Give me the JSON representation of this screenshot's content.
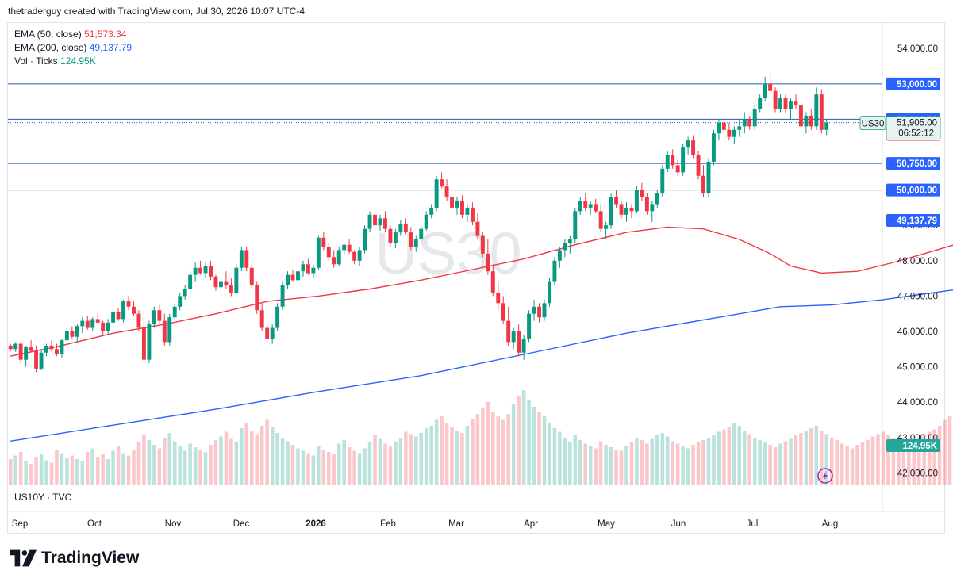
{
  "header": {
    "credit": "thetraderguy created with TradingView.com, Jul 30, 2026 10:07 UTC-4"
  },
  "legend": [
    {
      "label": "EMA (50, close)",
      "value": "51,573.34",
      "color": "#f23645"
    },
    {
      "label": "EMA (200, close)",
      "value": "49,137.79",
      "color": "#2962ff"
    },
    {
      "label": "Vol · Ticks",
      "value": "124.95K",
      "color": "#089981"
    }
  ],
  "sub_legend": "US10Y · TVC",
  "watermark": "US30",
  "footer": {
    "brand": "TradingView"
  },
  "colors": {
    "up": "#089981",
    "down": "#f23645",
    "ema50": "#f23645",
    "ema200": "#2962ff",
    "hline": "#2a5caa"
  },
  "chart_data": {
    "type": "candlestick",
    "symbol": "US30",
    "y_axis_ticks": [
      {
        "value": 54000,
        "label": "54,000.00"
      },
      {
        "value": 49000,
        "label": "49,000.00"
      },
      {
        "value": 48000,
        "label": "48,000.00"
      },
      {
        "value": 47000,
        "label": "47,000.00"
      },
      {
        "value": 46000,
        "label": "46,000.00"
      },
      {
        "value": 45000,
        "label": "45,000.00"
      },
      {
        "value": 44000,
        "label": "44,000.00"
      },
      {
        "value": 43000,
        "label": "43,000.00"
      },
      {
        "value": 42000,
        "label": "42,000.00"
      }
    ],
    "ylim": [
      41650,
      54700
    ],
    "x_axis_labels": [
      "Sep",
      "Oct",
      "Nov",
      "Dec",
      "2026",
      "Feb",
      "Mar",
      "Apr",
      "May",
      "Jun",
      "Jul",
      "Aug"
    ],
    "horizontal_levels": [
      {
        "value": 53000,
        "label": "53,000.00"
      },
      {
        "value": 52000,
        "label": "52,000.00"
      },
      {
        "value": 50750,
        "label": "50,750.00"
      },
      {
        "value": 50000,
        "label": "50,000.00"
      }
    ],
    "last_price": {
      "value": 51905,
      "label": "51,905.00",
      "countdown": "06:52:12",
      "symbol_tag": "US30"
    },
    "ema50": {
      "last": 51573.34,
      "label": "51,573.34",
      "points": [
        [
          0,
          45300
        ],
        [
          10,
          45600
        ],
        [
          20,
          45950
        ],
        [
          30,
          46200
        ],
        [
          40,
          46500
        ],
        [
          50,
          46850
        ],
        [
          60,
          47000
        ],
        [
          70,
          47200
        ],
        [
          80,
          47450
        ],
        [
          90,
          47750
        ],
        [
          100,
          48050
        ],
        [
          110,
          48450
        ],
        [
          120,
          48800
        ],
        [
          128,
          48950
        ],
        [
          135,
          48900
        ],
        [
          142,
          48600
        ],
        [
          148,
          48200
        ],
        [
          152,
          47850
        ],
        [
          158,
          47650
        ],
        [
          165,
          47700
        ],
        [
          172,
          47950
        ],
        [
          178,
          48200
        ],
        [
          185,
          48500
        ],
        [
          192,
          48900
        ],
        [
          200,
          49300
        ],
        [
          207,
          49600
        ],
        [
          212,
          49850
        ],
        [
          218,
          50200
        ],
        [
          224,
          50550
        ],
        [
          230,
          51000
        ],
        [
          236,
          51300
        ],
        [
          240,
          51480
        ],
        [
          243,
          51573
        ]
      ]
    },
    "ema200": {
      "last": 49137.79,
      "label": "49,137.79",
      "points": [
        [
          0,
          42900
        ],
        [
          20,
          43350
        ],
        [
          40,
          43800
        ],
        [
          60,
          44300
        ],
        [
          80,
          44750
        ],
        [
          100,
          45350
        ],
        [
          120,
          45950
        ],
        [
          140,
          46450
        ],
        [
          150,
          46700
        ],
        [
          160,
          46750
        ],
        [
          170,
          46900
        ],
        [
          190,
          47300
        ],
        [
          210,
          47850
        ],
        [
          225,
          48450
        ],
        [
          235,
          48850
        ],
        [
          243,
          49138
        ]
      ]
    },
    "volume": {
      "last": 124.95,
      "label": "124.95K"
    },
    "candles": [
      [
        45600,
        45650,
        45450,
        45500
      ],
      [
        45500,
        45700,
        45420,
        45650
      ],
      [
        45650,
        45700,
        45100,
        45200
      ],
      [
        45200,
        45600,
        45000,
        45550
      ],
      [
        45550,
        45750,
        45400,
        45450
      ],
      [
        45450,
        45600,
        44850,
        44950
      ],
      [
        44950,
        45500,
        44900,
        45400
      ],
      [
        45400,
        45650,
        45300,
        45600
      ],
      [
        45600,
        45750,
        45450,
        45500
      ],
      [
        45500,
        45650,
        45300,
        45350
      ],
      [
        45350,
        45800,
        45250,
        45750
      ],
      [
        45750,
        46100,
        45650,
        46000
      ],
      [
        46000,
        46150,
        45800,
        45850
      ],
      [
        45850,
        46200,
        45700,
        46150
      ],
      [
        46150,
        46400,
        45950,
        46300
      ],
      [
        46300,
        46450,
        46050,
        46100
      ],
      [
        46100,
        46400,
        46000,
        46350
      ],
      [
        46350,
        46500,
        46200,
        46250
      ],
      [
        46250,
        46300,
        45900,
        46000
      ],
      [
        46000,
        46350,
        45900,
        46250
      ],
      [
        46250,
        46600,
        46100,
        46550
      ],
      [
        46550,
        46650,
        46300,
        46350
      ],
      [
        46350,
        46900,
        46250,
        46850
      ],
      [
        46850,
        47000,
        46600,
        46700
      ],
      [
        46700,
        46850,
        46450,
        46500
      ],
      [
        46500,
        46600,
        46000,
        46100
      ],
      [
        46100,
        46400,
        45100,
        45200
      ],
      [
        45200,
        46300,
        45100,
        46200
      ],
      [
        46200,
        46700,
        46100,
        46600
      ],
      [
        46600,
        46750,
        46250,
        46300
      ],
      [
        46300,
        46500,
        45600,
        45700
      ],
      [
        45700,
        46500,
        45600,
        46400
      ],
      [
        46400,
        46800,
        46300,
        46700
      ],
      [
        46700,
        47100,
        46600,
        47000
      ],
      [
        47000,
        47300,
        46900,
        47200
      ],
      [
        47200,
        47700,
        47100,
        47600
      ],
      [
        47600,
        47950,
        47400,
        47800
      ],
      [
        47800,
        48000,
        47600,
        47650
      ],
      [
        47650,
        47950,
        47500,
        47850
      ],
      [
        47850,
        48000,
        47450,
        47550
      ],
      [
        47550,
        47600,
        47150,
        47250
      ],
      [
        47250,
        47500,
        47000,
        47400
      ],
      [
        47400,
        47700,
        47200,
        47300
      ],
      [
        47300,
        47500,
        47000,
        47100
      ],
      [
        47100,
        47900,
        47050,
        47800
      ],
      [
        47800,
        48400,
        47700,
        48300
      ],
      [
        48300,
        48400,
        47700,
        47800
      ],
      [
        47800,
        47900,
        47200,
        47300
      ],
      [
        47300,
        47400,
        46500,
        46600
      ],
      [
        46600,
        46800,
        46000,
        46100
      ],
      [
        46100,
        46200,
        45700,
        45800
      ],
      [
        45800,
        46200,
        45650,
        46100
      ],
      [
        46100,
        46800,
        46000,
        46700
      ],
      [
        46700,
        47400,
        46600,
        47300
      ],
      [
        47300,
        47700,
        47200,
        47600
      ],
      [
        47600,
        47750,
        47400,
        47450
      ],
      [
        47450,
        47800,
        47300,
        47700
      ],
      [
        47700,
        48000,
        47550,
        47900
      ],
      [
        47900,
        48050,
        47600,
        47650
      ],
      [
        47650,
        47900,
        47500,
        47800
      ],
      [
        47800,
        48700,
        47750,
        48650
      ],
      [
        48650,
        48800,
        48300,
        48400
      ],
      [
        48400,
        48500,
        48000,
        48100
      ],
      [
        48100,
        48300,
        47800,
        47900
      ],
      [
        47900,
        48400,
        47850,
        48300
      ],
      [
        48300,
        48500,
        48150,
        48450
      ],
      [
        48450,
        48600,
        48200,
        48250
      ],
      [
        48250,
        48300,
        47900,
        48000
      ],
      [
        48000,
        48400,
        47850,
        48300
      ],
      [
        48300,
        49000,
        48200,
        48900
      ],
      [
        48900,
        49400,
        48800,
        49300
      ],
      [
        49300,
        49450,
        48900,
        49000
      ],
      [
        49000,
        49300,
        48850,
        49200
      ],
      [
        49200,
        49400,
        48800,
        48900
      ],
      [
        48900,
        49000,
        48400,
        48500
      ],
      [
        48500,
        48900,
        48350,
        48800
      ],
      [
        48800,
        49150,
        48700,
        49050
      ],
      [
        49050,
        49200,
        48750,
        48800
      ],
      [
        48800,
        48950,
        48300,
        48400
      ],
      [
        48400,
        48700,
        48250,
        48600
      ],
      [
        48600,
        49000,
        48500,
        48900
      ],
      [
        48900,
        49400,
        48850,
        49300
      ],
      [
        49300,
        49600,
        49200,
        49500
      ],
      [
        49500,
        50400,
        49400,
        50300
      ],
      [
        50300,
        50500,
        50050,
        50100
      ],
      [
        50100,
        50300,
        49700,
        49800
      ],
      [
        49800,
        49900,
        49400,
        49500
      ],
      [
        49500,
        49800,
        49300,
        49700
      ],
      [
        49700,
        49850,
        49200,
        49300
      ],
      [
        49300,
        49600,
        49100,
        49500
      ],
      [
        49500,
        49650,
        49000,
        49100
      ],
      [
        49100,
        49350,
        48600,
        48700
      ],
      [
        48700,
        48800,
        48100,
        48200
      ],
      [
        48200,
        48600,
        47600,
        47700
      ],
      [
        47700,
        47900,
        47000,
        47100
      ],
      [
        47100,
        47400,
        46600,
        46800
      ],
      [
        46800,
        47000,
        46200,
        46300
      ],
      [
        46300,
        46700,
        45600,
        45700
      ],
      [
        45700,
        46100,
        45500,
        46000
      ],
      [
        46000,
        46200,
        45300,
        45400
      ],
      [
        45400,
        45900,
        45200,
        45800
      ],
      [
        45800,
        46600,
        45700,
        46500
      ],
      [
        46500,
        46900,
        46300,
        46700
      ],
      [
        46700,
        46800,
        46250,
        46400
      ],
      [
        46400,
        46900,
        46300,
        46800
      ],
      [
        46800,
        47500,
        46700,
        47400
      ],
      [
        47400,
        48100,
        47300,
        48000
      ],
      [
        48000,
        48400,
        47800,
        48300
      ],
      [
        48300,
        48600,
        48100,
        48500
      ],
      [
        48500,
        48700,
        48200,
        48600
      ],
      [
        48600,
        49500,
        48500,
        49400
      ],
      [
        49400,
        49800,
        49300,
        49700
      ],
      [
        49700,
        49900,
        49400,
        49500
      ],
      [
        49500,
        49700,
        49300,
        49600
      ],
      [
        49600,
        49750,
        49350,
        49400
      ],
      [
        49400,
        49600,
        48800,
        48900
      ],
      [
        48900,
        49100,
        48600,
        49000
      ],
      [
        49000,
        49900,
        48900,
        49800
      ],
      [
        49800,
        50000,
        49500,
        49600
      ],
      [
        49600,
        49700,
        49200,
        49300
      ],
      [
        49300,
        49650,
        49100,
        49500
      ],
      [
        49500,
        49600,
        49200,
        49400
      ],
      [
        49400,
        50100,
        49350,
        50000
      ],
      [
        50000,
        50200,
        49700,
        49800
      ],
      [
        49800,
        49900,
        49300,
        49400
      ],
      [
        49400,
        49700,
        49100,
        49600
      ],
      [
        49600,
        50000,
        49500,
        49900
      ],
      [
        49900,
        50700,
        49800,
        50600
      ],
      [
        50600,
        51100,
        50500,
        51000
      ],
      [
        51000,
        51150,
        50600,
        50700
      ],
      [
        50700,
        50850,
        50400,
        50500
      ],
      [
        50500,
        51300,
        50400,
        51200
      ],
      [
        51200,
        51500,
        51000,
        51400
      ],
      [
        51400,
        51550,
        50900,
        51000
      ],
      [
        51000,
        51100,
        50300,
        50400
      ],
      [
        50400,
        50700,
        49800,
        49900
      ],
      [
        49900,
        50900,
        49800,
        50800
      ],
      [
        50800,
        51700,
        50700,
        51600
      ],
      [
        51600,
        52000,
        51400,
        51900
      ],
      [
        51900,
        52100,
        51600,
        51700
      ],
      [
        51700,
        51900,
        51400,
        51500
      ],
      [
        51500,
        51800,
        51300,
        51700
      ],
      [
        51700,
        52000,
        51500,
        51800
      ],
      [
        51800,
        52200,
        51600,
        52000
      ],
      [
        52000,
        52100,
        51700,
        51800
      ],
      [
        51800,
        52400,
        51700,
        52300
      ],
      [
        52300,
        52700,
        52200,
        52600
      ],
      [
        52600,
        53200,
        52500,
        53000
      ],
      [
        53000,
        53350,
        52700,
        52800
      ],
      [
        52800,
        52900,
        52200,
        52300
      ],
      [
        52300,
        52700,
        52200,
        52600
      ],
      [
        52600,
        52700,
        52200,
        52300
      ],
      [
        52300,
        52600,
        52000,
        52500
      ],
      [
        52500,
        52700,
        52300,
        52400
      ],
      [
        52400,
        52500,
        51700,
        51800
      ],
      [
        51800,
        52200,
        51600,
        52100
      ],
      [
        52100,
        52300,
        51700,
        51800
      ],
      [
        51800,
        52900,
        51700,
        52700
      ],
      [
        52700,
        52850,
        51600,
        51700
      ],
      [
        51700,
        52000,
        51550,
        51905
      ]
    ],
    "volumes": [
      22,
      25,
      28,
      20,
      18,
      24,
      26,
      21,
      19,
      30,
      27,
      23,
      25,
      22,
      20,
      28,
      31,
      24,
      26,
      22,
      29,
      33,
      27,
      25,
      30,
      36,
      42,
      38,
      34,
      31,
      40,
      44,
      37,
      33,
      29,
      35,
      32,
      30,
      28,
      34,
      38,
      41,
      45,
      39,
      36,
      48,
      52,
      46,
      43,
      50,
      55,
      49,
      44,
      40,
      37,
      34,
      31,
      29,
      27,
      25,
      33,
      30,
      28,
      26,
      35,
      38,
      32,
      29,
      27,
      31,
      36,
      42,
      39,
      35,
      33,
      37,
      40,
      45,
      43,
      41,
      44,
      48,
      50,
      55,
      58,
      52,
      49,
      46,
      44,
      50,
      56,
      60,
      65,
      70,
      62,
      58,
      55,
      60,
      68,
      75,
      80,
      72,
      66,
      62,
      58,
      52,
      48,
      45,
      40,
      36,
      42,
      38,
      35,
      33,
      31,
      37,
      34,
      32,
      30,
      29,
      33,
      36,
      40,
      38,
      35,
      39,
      42,
      44,
      41,
      37,
      35,
      33,
      31,
      34,
      36,
      38,
      40,
      42,
      45,
      47,
      49,
      52,
      50,
      46,
      43,
      40,
      38,
      36,
      34,
      32,
      35,
      37,
      39,
      42,
      44,
      46,
      48,
      50,
      46,
      43,
      40,
      38,
      35,
      33,
      31,
      34,
      36,
      38,
      41,
      43,
      45,
      42,
      40,
      37,
      35,
      33,
      38,
      40,
      43,
      45,
      47,
      50,
      55,
      58,
      52,
      48,
      45,
      42,
      40,
      38,
      36,
      34,
      32,
      35,
      37,
      40,
      43,
      46,
      48,
      44,
      41,
      39,
      37,
      35,
      33,
      31,
      34,
      36,
      38,
      40,
      42,
      44,
      46,
      48,
      50,
      47,
      45,
      43,
      41,
      39,
      37,
      35,
      33,
      32,
      30,
      34,
      36,
      38,
      40,
      42,
      39,
      37,
      35,
      33,
      31,
      30,
      32,
      34,
      36,
      33
    ]
  }
}
